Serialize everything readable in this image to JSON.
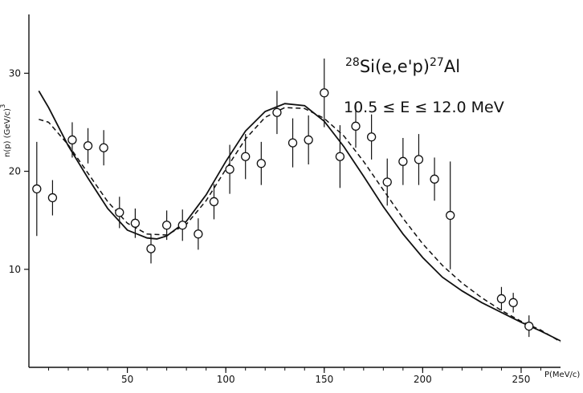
{
  "chart_data": {
    "type": "scatter",
    "title": "",
    "annotation": {
      "reaction": {
        "mass_a": "28",
        "target": "Si(e,e'p)",
        "mass_b": "27",
        "product": "Al"
      },
      "energy_range": "10.5 ≤ E ≤ 12.0 MeV"
    },
    "ylabel": {
      "main": "n(p) (GeV/c)",
      "exponent": "3"
    },
    "xlabel": "P(MeV/c)",
    "xlim": [
      0,
      270
    ],
    "ylim": [
      0,
      36
    ],
    "x_ticks": [
      50,
      100,
      150,
      200,
      250
    ],
    "y_ticks": [
      10,
      20,
      30
    ],
    "grid": false,
    "legend": null,
    "series": [
      {
        "type": "points_with_error_bars",
        "marker": "open-circle",
        "points": [
          {
            "x": 4,
            "y": 18.2,
            "err": 4.8
          },
          {
            "x": 12,
            "y": 17.3,
            "err": 1.8
          },
          {
            "x": 22,
            "y": 23.2,
            "err": 1.8
          },
          {
            "x": 30,
            "y": 22.6,
            "err": 1.8
          },
          {
            "x": 38,
            "y": 22.4,
            "err": 1.8
          },
          {
            "x": 46,
            "y": 15.8,
            "err": 1.6
          },
          {
            "x": 54,
            "y": 14.7,
            "err": 1.5
          },
          {
            "x": 62,
            "y": 12.1,
            "err": 1.5
          },
          {
            "x": 70,
            "y": 14.5,
            "err": 1.5
          },
          {
            "x": 78,
            "y": 14.5,
            "err": 1.6
          },
          {
            "x": 86,
            "y": 13.6,
            "err": 1.6
          },
          {
            "x": 94,
            "y": 16.9,
            "err": 1.8
          },
          {
            "x": 102,
            "y": 20.2,
            "err": 2.5
          },
          {
            "x": 110,
            "y": 21.5,
            "err": 2.3
          },
          {
            "x": 118,
            "y": 20.8,
            "err": 2.2
          },
          {
            "x": 126,
            "y": 26.0,
            "err": 2.2
          },
          {
            "x": 134,
            "y": 22.9,
            "err": 2.5
          },
          {
            "x": 142,
            "y": 23.2,
            "err": 2.5
          },
          {
            "x": 150,
            "y": 28.0,
            "err": 3.5
          },
          {
            "x": 158,
            "y": 21.5,
            "err": 3.2
          },
          {
            "x": 166,
            "y": 24.6,
            "err": 2.2
          },
          {
            "x": 174,
            "y": 23.5,
            "err": 2.3
          },
          {
            "x": 182,
            "y": 18.9,
            "err": 2.4
          },
          {
            "x": 190,
            "y": 21.0,
            "err": 2.4
          },
          {
            "x": 198,
            "y": 21.2,
            "err": 2.6
          },
          {
            "x": 206,
            "y": 19.2,
            "err": 2.2
          },
          {
            "x": 214,
            "y": 15.5,
            "err": 5.5
          },
          {
            "x": 240,
            "y": 7.0,
            "err": 1.2
          },
          {
            "x": 246,
            "y": 6.6,
            "err": 1.0
          },
          {
            "x": 254,
            "y": 4.2,
            "err": 1.1
          }
        ]
      },
      {
        "type": "line",
        "style": "solid",
        "x": [
          5,
          10,
          20,
          30,
          40,
          50,
          60,
          65,
          70,
          80,
          90,
          100,
          110,
          120,
          130,
          140,
          150,
          160,
          170,
          180,
          190,
          200,
          210,
          220,
          230,
          240,
          250,
          260,
          270
        ],
        "y": [
          28.2,
          26.5,
          22.6,
          19.3,
          16.2,
          14.0,
          13.2,
          13.1,
          13.4,
          14.9,
          17.6,
          21.0,
          24.1,
          26.1,
          26.9,
          26.7,
          25.1,
          22.5,
          19.5,
          16.4,
          13.6,
          11.2,
          9.2,
          7.8,
          6.6,
          5.6,
          4.6,
          3.7,
          2.7
        ]
      },
      {
        "type": "line",
        "style": "dashed",
        "x": [
          5,
          10,
          20,
          30,
          40,
          50,
          60,
          70,
          80,
          90,
          100,
          110,
          120,
          130,
          140,
          150,
          160,
          170,
          180,
          190,
          200,
          210,
          220,
          230,
          240,
          250,
          260,
          270
        ],
        "y": [
          25.3,
          25.0,
          22.7,
          19.8,
          16.9,
          14.7,
          13.6,
          13.5,
          14.6,
          17.0,
          20.2,
          23.3,
          25.5,
          26.5,
          26.4,
          25.4,
          23.6,
          21.0,
          18.1,
          15.2,
          12.6,
          10.4,
          8.6,
          7.1,
          5.8,
          4.7,
          3.8,
          2.6
        ]
      }
    ]
  }
}
